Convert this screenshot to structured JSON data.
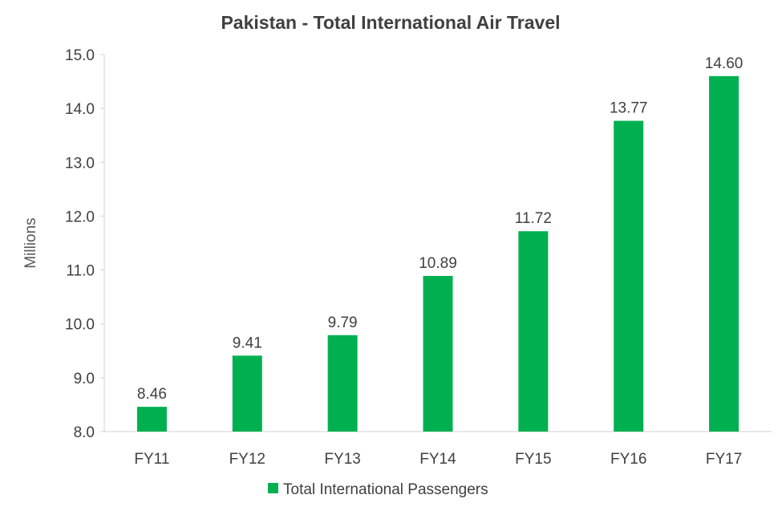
{
  "chart_data": {
    "type": "bar",
    "title": "Pakistan - Total International Air Travel",
    "xlabel": "",
    "ylabel": "Millions",
    "categories": [
      "FY11",
      "FY12",
      "FY13",
      "FY14",
      "FY15",
      "FY16",
      "FY17"
    ],
    "series": [
      {
        "name": "Total International Passengers",
        "values": [
          8.46,
          9.41,
          9.79,
          10.89,
          11.72,
          13.77,
          14.6
        ],
        "labels": [
          "8.46",
          "9.41",
          "9.79",
          "10.89",
          "11.72",
          "13.77",
          "14.60"
        ],
        "color": "#00b050"
      }
    ],
    "ylim": [
      8.0,
      15.0
    ],
    "yticks": [
      8.0,
      9.0,
      10.0,
      11.0,
      12.0,
      13.0,
      14.0,
      15.0
    ],
    "ytick_labels": [
      "8.0",
      "9.0",
      "10.0",
      "11.0",
      "12.0",
      "13.0",
      "14.0",
      "15.0"
    ],
    "grid": false,
    "legend_position": "bottom",
    "axis_color": "#d9d9d9"
  }
}
